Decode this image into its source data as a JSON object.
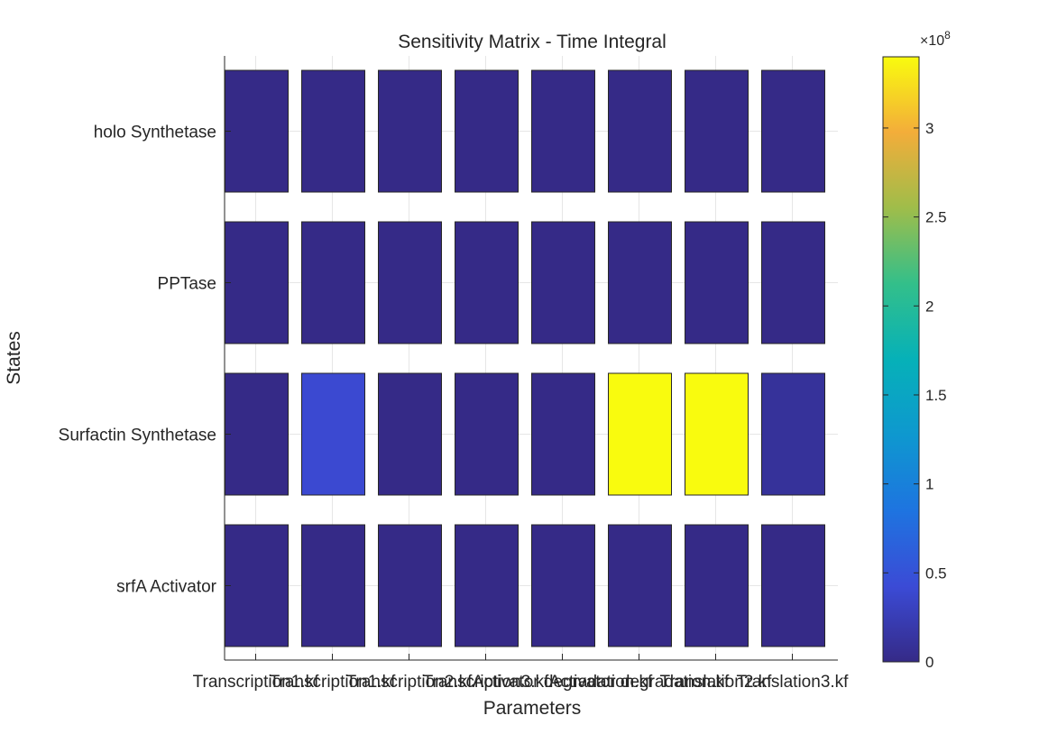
{
  "chart_data": {
    "type": "heatmap",
    "title": "Sensitivity Matrix - Time Integral",
    "xlabel": "Parameters",
    "ylabel": "States",
    "x_categories": [
      "Transcription1.kf",
      "Transcription1.kf",
      "Transcription2.kf",
      "Transcription3.kf",
      "Activator degradation.kf",
      "Activator degradation.kf",
      "Translation2.kf",
      "Translation3.kf"
    ],
    "y_categories": [
      "holo Synthetase",
      "PPTase",
      "Surfactin Synthetase",
      "srfA Activator"
    ],
    "values": [
      [
        0,
        0,
        0,
        0,
        0,
        0,
        0,
        0
      ],
      [
        0,
        0,
        0,
        0,
        0,
        0,
        0,
        0
      ],
      [
        0,
        40000000,
        0,
        0,
        0,
        340000000,
        340000000,
        10000000
      ],
      [
        0,
        0,
        0,
        0,
        0,
        0,
        0,
        0
      ]
    ],
    "colorbar": {
      "range": [
        0,
        340000000
      ],
      "exponent_label": "×10",
      "exponent_power": "8",
      "ticks": [
        0,
        50000000,
        100000000,
        150000000,
        200000000,
        250000000,
        300000000
      ],
      "tick_labels": [
        "0",
        "0.5",
        "1",
        "1.5",
        "2",
        "2.5",
        "3"
      ],
      "colormap": "parula"
    },
    "grid": true
  }
}
